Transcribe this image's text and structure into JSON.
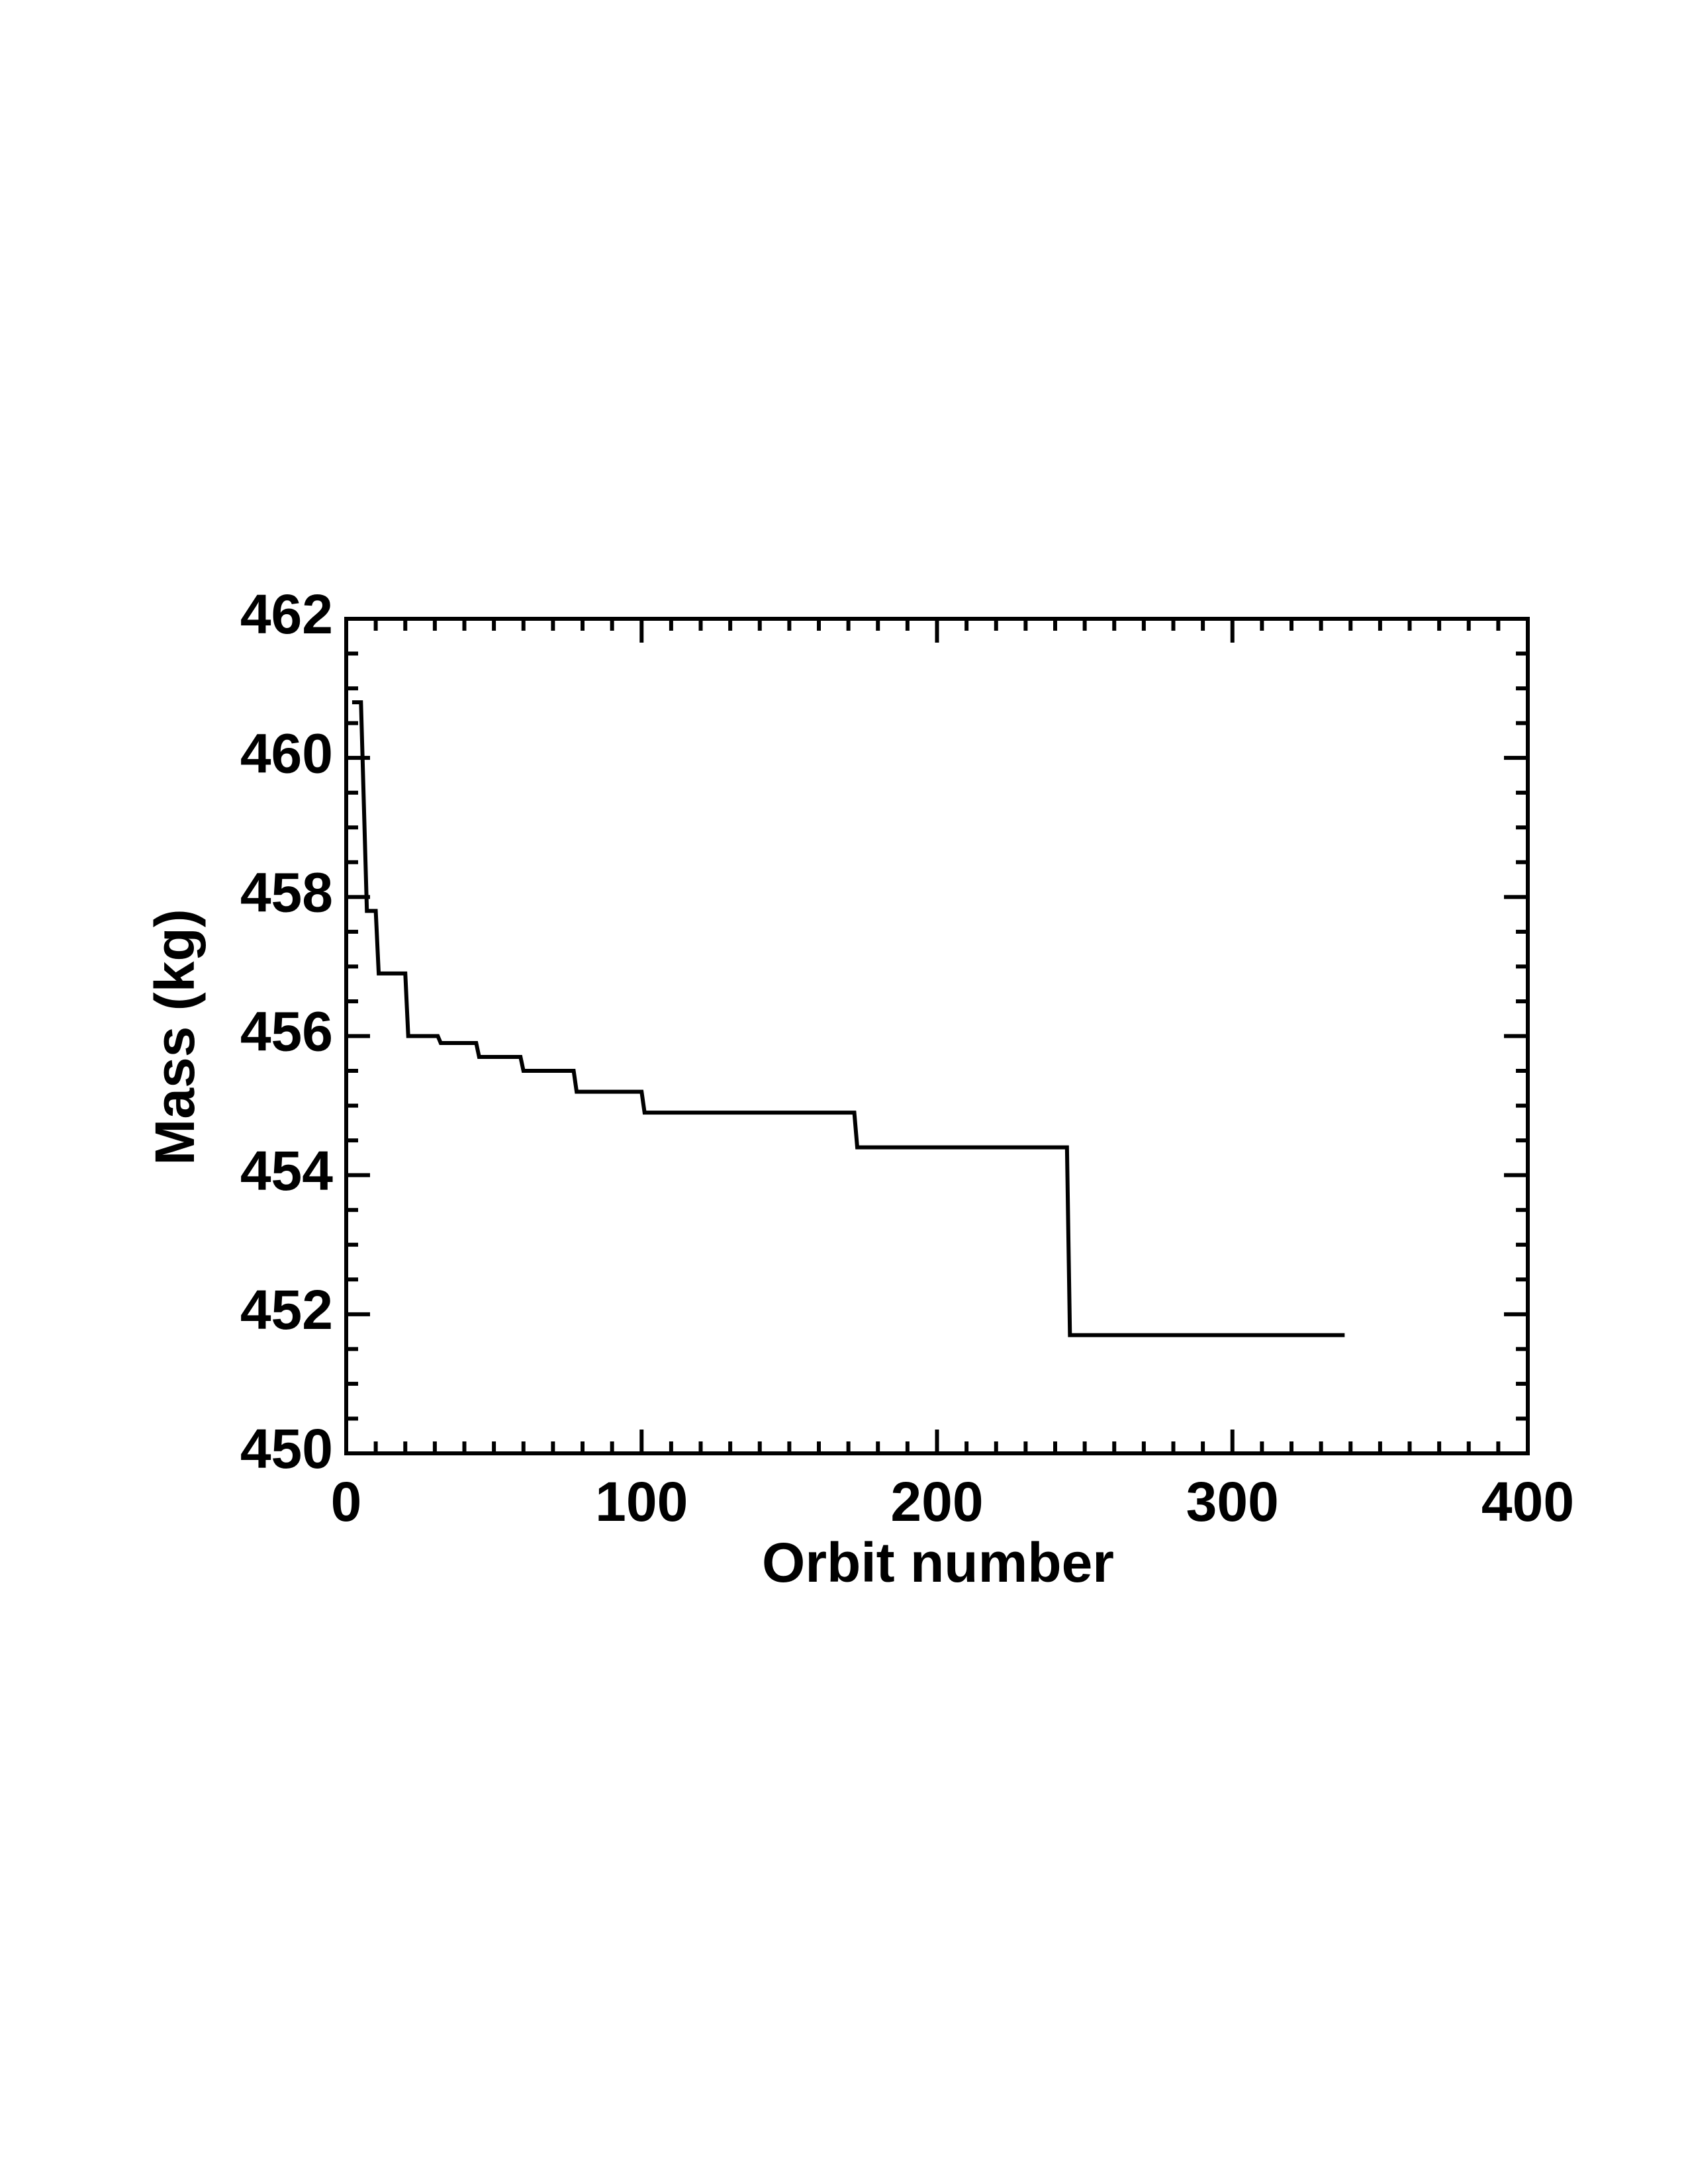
{
  "chart_data": {
    "type": "line",
    "xlabel": "Orbit number",
    "ylabel": "Mass (kg)",
    "x": [
      2,
      5,
      7,
      10,
      11,
      20,
      21,
      31,
      32,
      44,
      45,
      59,
      60,
      77,
      78,
      100,
      101,
      172,
      173,
      244,
      245,
      338
    ],
    "series": [
      {
        "color": "#000000",
        "values": [
          460.8,
          460.8,
          457.8,
          457.8,
          456.9,
          456.9,
          456.0,
          456.0,
          455.9,
          455.9,
          455.7,
          455.7,
          455.5,
          455.5,
          455.2,
          455.2,
          454.9,
          454.9,
          454.4,
          454.4,
          451.7,
          451.7
        ]
      }
    ],
    "xlim": [
      0,
      400
    ],
    "xticks": [
      0,
      100,
      200,
      300,
      400
    ],
    "ylim": [
      450,
      462
    ],
    "yticks": [
      450,
      452,
      454,
      456,
      458,
      460,
      462
    ],
    "grid": false
  }
}
